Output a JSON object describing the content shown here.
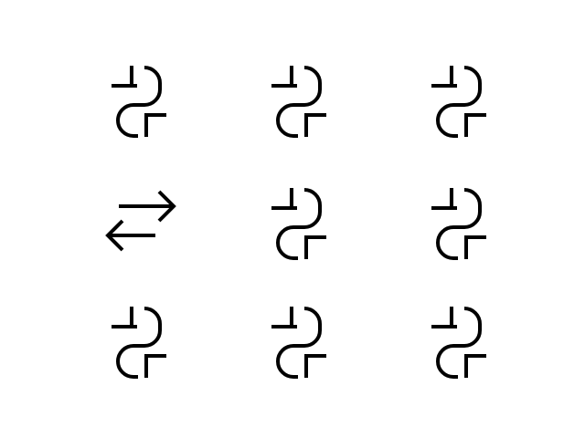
{
  "grid": {
    "rows": 3,
    "columns": 3,
    "stroke_color": "#000000",
    "background_color": "#ffffff",
    "cells": [
      {
        "icon": "split-link-icon"
      },
      {
        "icon": "split-link-icon"
      },
      {
        "icon": "split-link-icon"
      },
      {
        "icon": "swap-arrows-icon"
      },
      {
        "icon": "split-link-icon"
      },
      {
        "icon": "split-link-icon"
      },
      {
        "icon": "split-link-icon"
      },
      {
        "icon": "split-link-icon"
      },
      {
        "icon": "split-link-icon"
      }
    ]
  }
}
